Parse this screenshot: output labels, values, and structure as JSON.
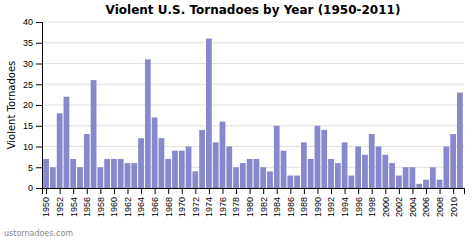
{
  "chart_data": {
    "type": "bar",
    "title": "Violent U.S. Tornadoes by Year (1950-2011)",
    "ylabel": "Violent Tornadoes",
    "annotations": [
      "ustornadoes.com"
    ],
    "x": [
      1950,
      1951,
      1952,
      1953,
      1954,
      1955,
      1956,
      1957,
      1958,
      1959,
      1960,
      1961,
      1962,
      1963,
      1964,
      1965,
      1966,
      1967,
      1968,
      1969,
      1970,
      1971,
      1972,
      1973,
      1974,
      1975,
      1976,
      1977,
      1978,
      1979,
      1980,
      1981,
      1982,
      1983,
      1984,
      1985,
      1986,
      1987,
      1988,
      1989,
      1990,
      1991,
      1992,
      1993,
      1994,
      1995,
      1996,
      1997,
      1998,
      1999,
      2000,
      2001,
      2002,
      2003,
      2004,
      2005,
      2006,
      2007,
      2008,
      2009,
      2010,
      2011
    ],
    "values": [
      7,
      5,
      18,
      22,
      7,
      5,
      13,
      26,
      5,
      7,
      7,
      7,
      6,
      6,
      12,
      31,
      17,
      12,
      7,
      9,
      9,
      10,
      4,
      14,
      36,
      11,
      16,
      10,
      5,
      6,
      7,
      7,
      5,
      4,
      15,
      9,
      3,
      3,
      11,
      7,
      15,
      14,
      7,
      6,
      11,
      3,
      10,
      8,
      13,
      10,
      8,
      6,
      3,
      5,
      5,
      1,
      2,
      5,
      2,
      10,
      13,
      23
    ],
    "color": "#8888cc",
    "xlim": [
      1949.4,
      2011.6
    ],
    "xticks": [
      1950,
      1952,
      1954,
      1956,
      1958,
      1960,
      1962,
      1964,
      1966,
      1968,
      1970,
      1972,
      1974,
      1976,
      1978,
      1980,
      1982,
      1984,
      1986,
      1988,
      1990,
      1992,
      1994,
      1996,
      1998,
      2000,
      2002,
      2004,
      2006,
      2008,
      2010
    ],
    "ylim": [
      0,
      40
    ],
    "yticks": [
      0,
      5,
      10,
      15,
      20,
      25,
      30,
      35,
      40
    ],
    "grid": true
  }
}
